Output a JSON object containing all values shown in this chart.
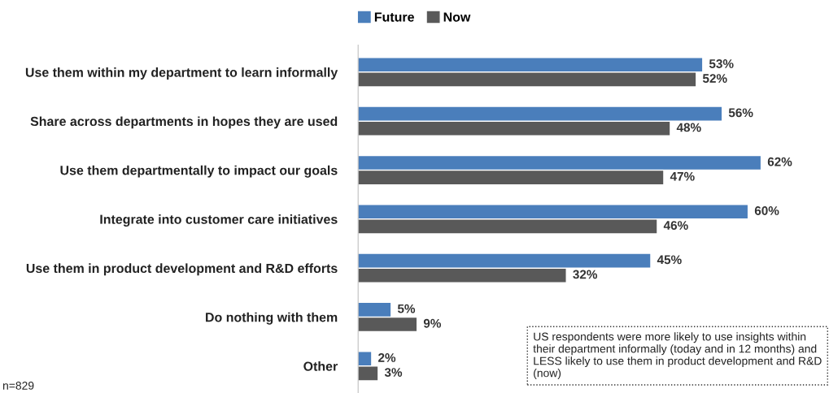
{
  "chart_data": {
    "type": "bar",
    "orientation": "horizontal",
    "categories": [
      "Use them within my department to learn informally",
      "Share across departments in hopes they are used",
      "Use them departmentally to impact our goals",
      "Integrate into customer care initiatives",
      "Use them in product development and R&D efforts",
      "Do nothing with them",
      "Other"
    ],
    "series": [
      {
        "name": "Future",
        "color": "#4a7ebb",
        "values": [
          53,
          56,
          62,
          60,
          45,
          5,
          2
        ],
        "value_labels": [
          "53%",
          "56%",
          "62%",
          "60%",
          "45%",
          "5%",
          "2%"
        ]
      },
      {
        "name": "Now",
        "color": "#595959",
        "values": [
          52,
          48,
          47,
          46,
          32,
          9,
          3
        ],
        "value_labels": [
          "52%",
          "48%",
          "47%",
          "46%",
          "32%",
          "9%",
          "3%"
        ]
      }
    ],
    "tick_labels": "y",
    "legend": "top",
    "grid": false,
    "annotations": [
      "US respondents were more likely to use insights within their department informally (today and in 12 months) and LESS likely to use them in product development and R&D (now)",
      "n=829"
    ]
  }
}
